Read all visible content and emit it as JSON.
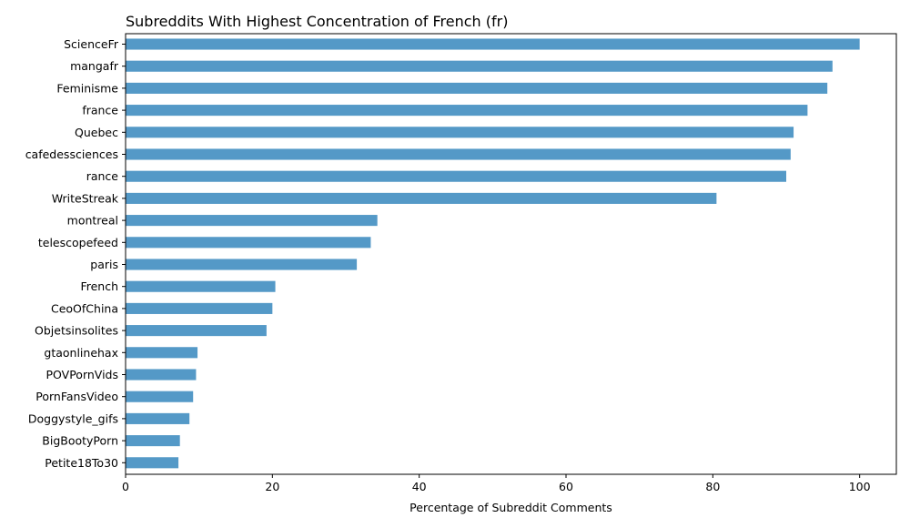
{
  "chart_data": {
    "type": "bar",
    "orientation": "horizontal",
    "title": "Subreddits With Highest Concentration of French (fr)",
    "xlabel": "Percentage of Subreddit Comments",
    "ylabel": "",
    "xlim": [
      0,
      105
    ],
    "xticks": [
      0,
      20,
      40,
      60,
      80,
      100
    ],
    "grid": false,
    "bar_color": "#5499c7",
    "categories": [
      "ScienceFr",
      "mangafr",
      "Feminisme",
      "france",
      "Quebec",
      "cafedessciences",
      "rance",
      "WriteStreak",
      "montreal",
      "telescopefeed",
      "paris",
      "French",
      "CeoOfChina",
      "Objetsinsolites",
      "gtaonlinehax",
      "POVPornVids",
      "PornFansVideo",
      "Doggystyle_gifs",
      "BigBootyPorn",
      "Petite18To30"
    ],
    "values": [
      100,
      96.3,
      95.6,
      92.9,
      91.0,
      90.6,
      90.0,
      80.5,
      34.3,
      33.4,
      31.5,
      20.4,
      20.0,
      19.2,
      9.8,
      9.6,
      9.2,
      8.7,
      7.4,
      7.2
    ]
  }
}
